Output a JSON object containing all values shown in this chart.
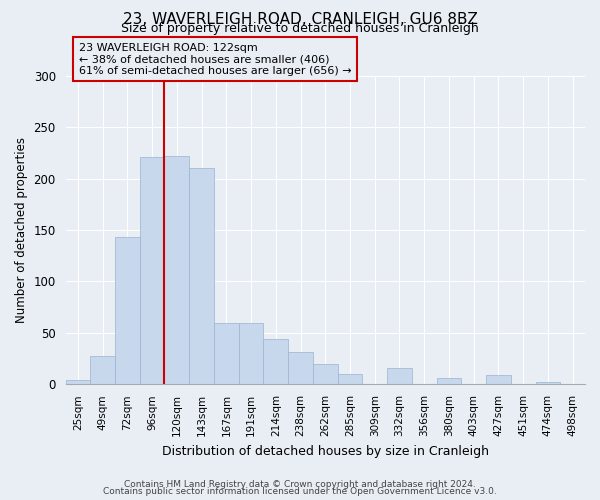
{
  "title": "23, WAVERLEIGH ROAD, CRANLEIGH, GU6 8BZ",
  "subtitle": "Size of property relative to detached houses in Cranleigh",
  "xlabel": "Distribution of detached houses by size in Cranleigh",
  "ylabel": "Number of detached properties",
  "bar_color": "#c8d8ec",
  "bar_edge_color": "#9ab4d0",
  "categories": [
    "25sqm",
    "49sqm",
    "72sqm",
    "96sqm",
    "120sqm",
    "143sqm",
    "167sqm",
    "191sqm",
    "214sqm",
    "238sqm",
    "262sqm",
    "285sqm",
    "309sqm",
    "332sqm",
    "356sqm",
    "380sqm",
    "403sqm",
    "427sqm",
    "451sqm",
    "474sqm",
    "498sqm"
  ],
  "values": [
    4,
    28,
    143,
    221,
    222,
    210,
    60,
    60,
    44,
    31,
    20,
    10,
    0,
    16,
    0,
    6,
    0,
    9,
    0,
    2,
    0
  ],
  "ylim": [
    0,
    300
  ],
  "yticks": [
    0,
    50,
    100,
    150,
    200,
    250,
    300
  ],
  "vline_index": 4,
  "vline_color": "#cc0000",
  "annotation_title": "23 WAVERLEIGH ROAD: 122sqm",
  "annotation_line1": "← 38% of detached houses are smaller (406)",
  "annotation_line2": "61% of semi-detached houses are larger (656) →",
  "footer1": "Contains HM Land Registry data © Crown copyright and database right 2024.",
  "footer2": "Contains public sector information licensed under the Open Government Licence v3.0.",
  "background_color": "#e8eef4",
  "plot_background": "#e8eef4",
  "grid_color": "#ffffff"
}
